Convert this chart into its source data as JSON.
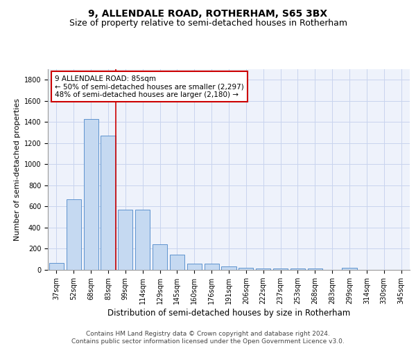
{
  "title1": "9, ALLENDALE ROAD, ROTHERHAM, S65 3BX",
  "title2": "Size of property relative to semi-detached houses in Rotherham",
  "xlabel": "Distribution of semi-detached houses by size in Rotherham",
  "ylabel": "Number of semi-detached properties",
  "categories": [
    "37sqm",
    "52sqm",
    "68sqm",
    "83sqm",
    "99sqm",
    "114sqm",
    "129sqm",
    "145sqm",
    "160sqm",
    "176sqm",
    "191sqm",
    "206sqm",
    "222sqm",
    "237sqm",
    "253sqm",
    "268sqm",
    "283sqm",
    "299sqm",
    "314sqm",
    "330sqm",
    "345sqm"
  ],
  "values": [
    65,
    670,
    1430,
    1270,
    570,
    570,
    245,
    145,
    60,
    60,
    30,
    20,
    15,
    15,
    10,
    10,
    0,
    20,
    0,
    0,
    0
  ],
  "bar_color": "#c5d9f1",
  "bar_edge_color": "#4a86c8",
  "vline_color": "#cc0000",
  "annotation_title": "9 ALLENDALE ROAD: 85sqm",
  "annotation_line1": "← 50% of semi-detached houses are smaller (2,297)",
  "annotation_line2": "48% of semi-detached houses are larger (2,180) →",
  "annotation_edge_color": "#cc0000",
  "ylim": [
    0,
    1900
  ],
  "yticks": [
    0,
    200,
    400,
    600,
    800,
    1000,
    1200,
    1400,
    1600,
    1800
  ],
  "footer1": "Contains HM Land Registry data © Crown copyright and database right 2024.",
  "footer2": "Contains public sector information licensed under the Open Government Licence v3.0.",
  "bg_color": "#eef2fb",
  "grid_color": "#c8d4ee",
  "title1_fontsize": 10,
  "title2_fontsize": 9,
  "axis_label_fontsize": 8,
  "tick_fontsize": 7,
  "annotation_fontsize": 7.5,
  "footer_fontsize": 6.5
}
